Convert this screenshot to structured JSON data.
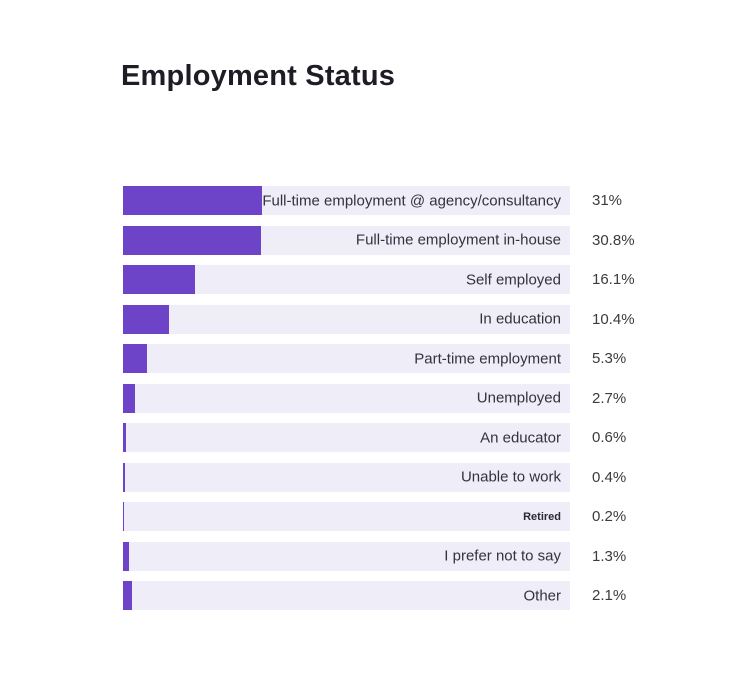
{
  "page": {
    "title": "Employment Status"
  },
  "chart_data": {
    "type": "bar",
    "orientation": "horizontal",
    "title": "Employment Status",
    "categories": [
      "Full-time employment @ agency/consultancy",
      "Full-time employment in-house",
      "Self employed",
      "In education",
      "Part-time employment",
      "Unemployed",
      "An educator",
      "Unable to work",
      "Retired",
      "I prefer not to say",
      "Other"
    ],
    "values": [
      31,
      30.8,
      16.1,
      10.4,
      5.3,
      2.7,
      0.6,
      0.4,
      0.2,
      1.3,
      2.1
    ],
    "value_labels": [
      "31%",
      "30.8%",
      "16.1%",
      "10.4%",
      "5.3%",
      "2.7%",
      "0.6%",
      "0.4%",
      "0.2%",
      "1.3%",
      "2.1%"
    ],
    "xlim": [
      0,
      100
    ],
    "grid": false,
    "legend": "none",
    "colors": {
      "bar": "#6d44c8",
      "track": "#efedf8",
      "title_text": "#1e1c24",
      "label_text": "#33323d",
      "value_text": "#3b3b40"
    }
  }
}
